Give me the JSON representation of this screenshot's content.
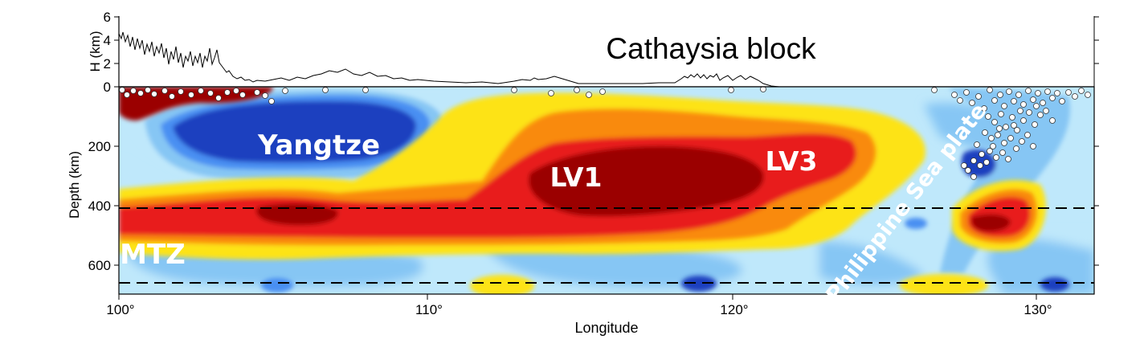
{
  "figure": {
    "title": "Cathaysia block",
    "topo_ylabel": "H (km)",
    "depth_ylabel": "Depth (km)",
    "xlabel": "Longitude"
  },
  "topo_axis": {
    "ticks": [
      "6",
      "4",
      "2",
      "0"
    ]
  },
  "depth_axis": {
    "ticks": [
      "200",
      "400",
      "600"
    ]
  },
  "x_axis": {
    "ticks": [
      "100°",
      "110°",
      "120°",
      "130°"
    ]
  },
  "labels": {
    "yangtze": "Yangtze",
    "lv1": "LV1",
    "lv3": "LV3",
    "mtz": "MTZ",
    "slab": "Philippine Sea plate"
  },
  "colors": {
    "deep_red": "#9b0000",
    "red": "#e81c1c",
    "orange": "#f98a0e",
    "yellow": "#fde318",
    "light_blue": "#bfe8fb",
    "blue": "#86c6f4",
    "dark_blue": "#1a3fbf"
  },
  "chart_data": {
    "type": "cross-section",
    "x_range_deg": [
      100,
      132
    ],
    "depth_range_km": [
      0,
      700
    ],
    "topo_range_km": [
      0,
      6
    ],
    "reference_depths_km": [
      410,
      660
    ]
  }
}
